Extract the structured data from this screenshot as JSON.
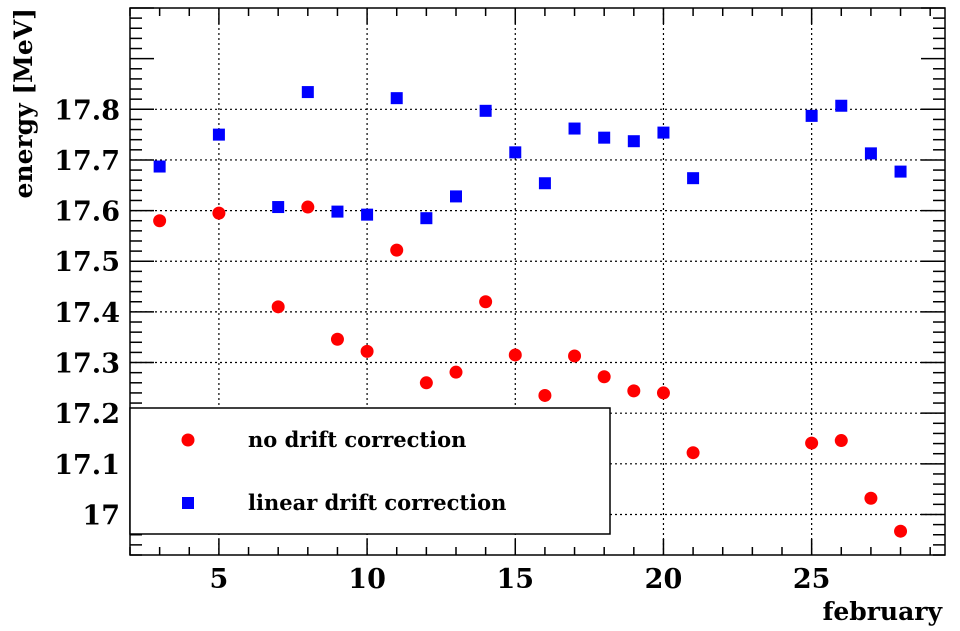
{
  "chart_data": {
    "type": "scatter",
    "xlabel": "february",
    "ylabel": "energy [MeV]",
    "xlim": [
      2,
      29.5
    ],
    "ylim": [
      16.92,
      18.0
    ],
    "x_ticks": [
      5,
      10,
      15,
      20,
      25
    ],
    "x_tick_labels": [
      "5",
      "10",
      "15",
      "20",
      "25"
    ],
    "y_ticks": [
      17.0,
      17.1,
      17.2,
      17.3,
      17.4,
      17.5,
      17.6,
      17.7,
      17.8
    ],
    "y_tick_labels": [
      "17",
      "17.1",
      "17.2",
      "17.3",
      "17.4",
      "17.5",
      "17.6",
      "17.7",
      "17.8"
    ],
    "grid": true,
    "legend_position": "bottom-left",
    "series": [
      {
        "name": "no drift correction",
        "marker": "circle",
        "color": "#ff0000",
        "points": [
          [
            3,
            17.58
          ],
          [
            5,
            17.595
          ],
          [
            7,
            17.41
          ],
          [
            8,
            17.607
          ],
          [
            9,
            17.346
          ],
          [
            10,
            17.322
          ],
          [
            11,
            17.522
          ],
          [
            12,
            17.26
          ],
          [
            13,
            17.281
          ],
          [
            14,
            17.42
          ],
          [
            15,
            17.315
          ],
          [
            16,
            17.235
          ],
          [
            17,
            17.313
          ],
          [
            18,
            17.272
          ],
          [
            19,
            17.244
          ],
          [
            20,
            17.24
          ],
          [
            21,
            17.122
          ],
          [
            25,
            17.141
          ],
          [
            26,
            17.146
          ],
          [
            27,
            17.032
          ],
          [
            28,
            16.967
          ]
        ]
      },
      {
        "name": "linear drift correction",
        "marker": "square",
        "color": "#0000ff",
        "points": [
          [
            3,
            17.687
          ],
          [
            5,
            17.75
          ],
          [
            7,
            17.607
          ],
          [
            8,
            17.834
          ],
          [
            9,
            17.598
          ],
          [
            10,
            17.592
          ],
          [
            11,
            17.822
          ],
          [
            12,
            17.585
          ],
          [
            13,
            17.628
          ],
          [
            14,
            17.797
          ],
          [
            15,
            17.715
          ],
          [
            16,
            17.654
          ],
          [
            17,
            17.762
          ],
          [
            18,
            17.744
          ],
          [
            19,
            17.737
          ],
          [
            20,
            17.754
          ],
          [
            21,
            17.664
          ],
          [
            25,
            17.787
          ],
          [
            26,
            17.807
          ],
          [
            27,
            17.713
          ],
          [
            28,
            17.677
          ]
        ]
      }
    ]
  }
}
